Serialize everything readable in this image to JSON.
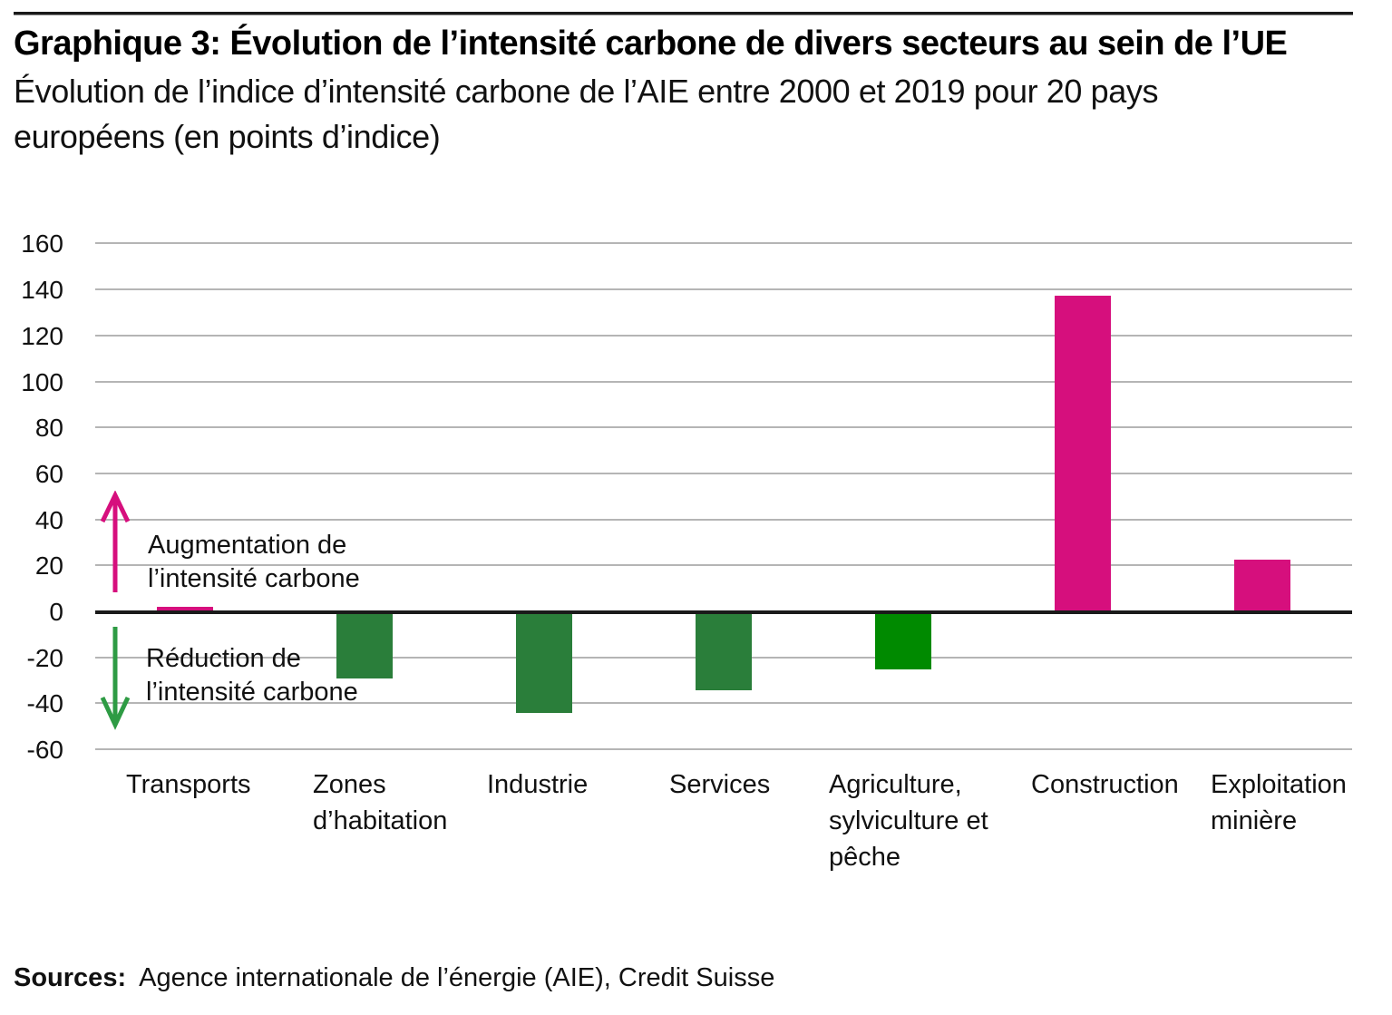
{
  "header": {
    "title": "Graphique 3: Évolution de l’intensité carbone de divers secteurs au sein de l’UE",
    "subtitle": "Évolution de l’indice d’intensité carbone de l’AIE entre 2000 et 2019 pour 20 pays\neuropéens (en points d’indice)"
  },
  "annotations": {
    "increase": "Augmentation de\nl’intensité carbone",
    "decrease": "Réduction de\nl’intensité carbone"
  },
  "sources": {
    "label": "Sources:",
    "text": "Agence internationale de l’énergie (AIE), Credit Suisse"
  },
  "colors": {
    "pink": "#d60f7d",
    "dark_green": "#2a7e3a",
    "bright_green": "#008a00",
    "arrow_pink": "#d60f7d",
    "arrow_green": "#2e9b44",
    "grid": "#b5b5b5",
    "axis": "#1a1a1a"
  },
  "chart_data": {
    "type": "bar",
    "title": "Graphique 3: Évolution de l’intensité carbone de divers secteurs au sein de l’UE",
    "subtitle": "Évolution de l’indice d’intensité carbone de l’AIE entre 2000 et 2019 pour 20 pays européens (en points d’indice)",
    "categories": [
      "Transports",
      "Zones d’habitation",
      "Industrie",
      "Services",
      "Agriculture, sylviculture et pêche",
      "Construction",
      "Exploitation minière"
    ],
    "category_label_lines": [
      [
        "Transports"
      ],
      [
        "Zones",
        "d’habitation"
      ],
      [
        "Industrie"
      ],
      [
        "Services"
      ],
      [
        "Agriculture,",
        "sylviculture et",
        "pêche"
      ],
      [
        "Construction"
      ],
      [
        "Exploitation",
        "minière"
      ]
    ],
    "values": [
      1,
      -28,
      -43,
      -33,
      -24,
      137,
      22
    ],
    "bar_colors": [
      "pink",
      "dark_green",
      "dark_green",
      "dark_green",
      "bright_green",
      "pink",
      "pink"
    ],
    "xlabel": "",
    "ylabel": "",
    "ylim": [
      -60,
      160
    ],
    "yticks": [
      160,
      140,
      120,
      100,
      80,
      60,
      40,
      20,
      0,
      -20,
      -40,
      -60
    ],
    "grid": true,
    "legend": "none"
  }
}
